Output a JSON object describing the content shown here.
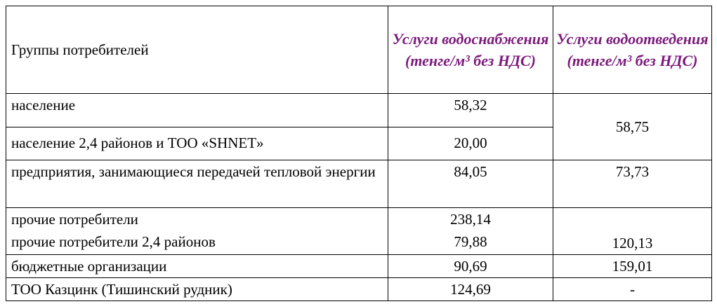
{
  "table": {
    "headers": {
      "group": "Группы потребителей",
      "water_supply": "Услуги водоснабжения (тенге/м³ без НДС)",
      "water_disposal": "Услуги водоотведения (тенге/м³ без НДС)"
    },
    "rows": [
      {
        "group": "население",
        "supply": "58,32"
      },
      {
        "group": "население 2,4 районов и ТОО «SHNET»",
        "supply": "20,00"
      },
      {
        "group": "предприятия, занимающиеся передачей тепловой энергии",
        "supply": "84,05"
      },
      {
        "group": "прочие потребители",
        "supply": "238,14"
      },
      {
        "group": "прочие потребители 2,4 районов",
        "supply": "79,88"
      },
      {
        "group": "бюджетные организации",
        "supply": "90,69"
      },
      {
        "group": "ТОО Казцинк (Тишинский рудник)",
        "supply": "124,69"
      }
    ],
    "disposal": {
      "population": "58,75",
      "heat_enterprises": "73,73",
      "other": "120,13",
      "budget": "159,01",
      "kazzinc": "-"
    },
    "header_color": "#7b1a7b"
  }
}
